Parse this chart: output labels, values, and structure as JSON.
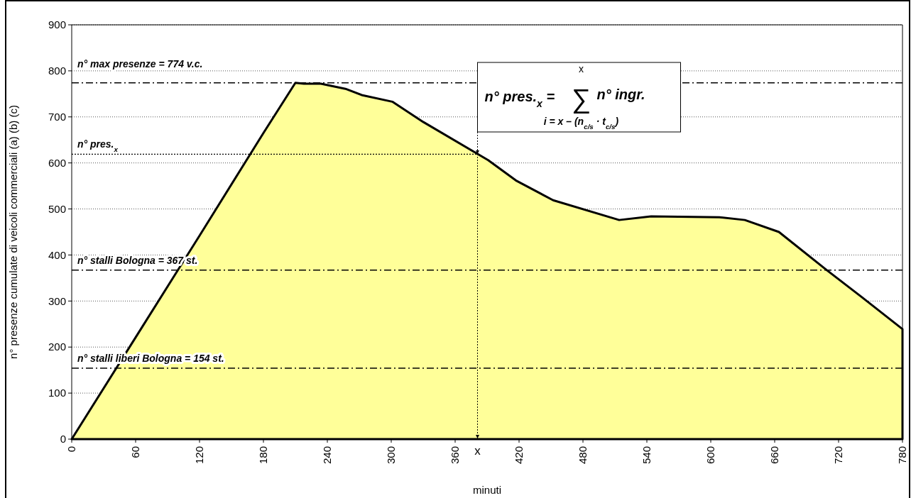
{
  "chart_data": {
    "type": "area",
    "xlabel": "minuti",
    "ylabel": "n° presenze cumulate di veicoli commerciali (a) (b) (c)",
    "xlim": [
      0,
      780
    ],
    "xticks": [
      0,
      60,
      120,
      180,
      240,
      300,
      360,
      420,
      480,
      540,
      600,
      660,
      720,
      780
    ],
    "ylim": [
      0,
      900
    ],
    "yticks": [
      0,
      100,
      200,
      300,
      400,
      500,
      600,
      700,
      800,
      900
    ],
    "grid": "y",
    "series": [
      {
        "color": "#ffff99",
        "x": [
          0,
          60,
          120,
          180,
          210,
          218,
          234,
          257,
          273,
          301,
          330,
          391,
          417,
          452,
          514,
          544,
          608,
          632,
          664,
          709,
          741,
          780
        ],
        "values": [
          0,
          221,
          442,
          665,
          774,
          772,
          772,
          761,
          747,
          733,
          689,
          606,
          562,
          519,
          476,
          484,
          482,
          476,
          450,
          367,
          310,
          239
        ]
      }
    ],
    "ref_lines": [
      {
        "axis": "y",
        "value": 774,
        "label": "n° max presenze = 774 v.c.",
        "line_style": "dashdot"
      },
      {
        "axis": "y",
        "value": 619,
        "label": "n° pres.$_{x}$",
        "line_style": "dotted"
      },
      {
        "axis": "y",
        "value": 367,
        "label": "n° stalli Bologna = 367 st.",
        "line_style": "dashdot"
      },
      {
        "axis": "y",
        "value": 154,
        "label": "n° stalli liberi Bologna = 154 st.",
        "line_style": "dashdot"
      }
    ],
    "annotations": [
      {
        "text": "x",
        "x": 381,
        "y": 0
      },
      "n° pres.$_{x}$ = ∑ n° ingr.",
      "x",
      "i = x – (n$_{c/s}$ · t$_{c/s}$)"
    ]
  }
}
